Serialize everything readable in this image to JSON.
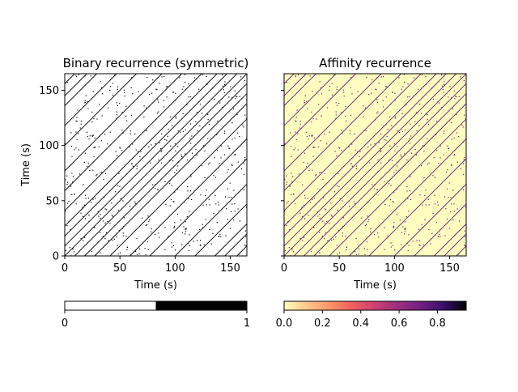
{
  "chart_data": [
    {
      "type": "heatmap",
      "title": "Binary recurrence (symmetric)",
      "xlabel": "Time (s)",
      "ylabel": "Time (s)",
      "xlim": [
        0,
        165
      ],
      "ylim": [
        0,
        165
      ],
      "xticks": [
        0,
        50,
        100,
        150
      ],
      "yticks": [
        0,
        50,
        100,
        150
      ],
      "background_color": "#ffffff",
      "mark_color": "#000000",
      "diagonal_lags": [
        0,
        9,
        18,
        27,
        41,
        59,
        77,
        100,
        118,
        136,
        145,
        156
      ],
      "colorbar": {
        "type": "binary",
        "ticks": [
          "0",
          "1"
        ],
        "colors": [
          "#ffffff",
          "#000000"
        ]
      }
    },
    {
      "type": "heatmap",
      "title": "Affinity recurrence",
      "xlabel": "Time (s)",
      "ylabel": "",
      "xlim": [
        0,
        165
      ],
      "ylim": [
        0,
        165
      ],
      "xticks": [
        0,
        50,
        100,
        150
      ],
      "yticks": [
        0,
        50,
        100,
        150
      ],
      "background_color": "#fcfdbf",
      "mark_color": "#6a1c81",
      "diagonal_lags": [
        0,
        9,
        18,
        27,
        41,
        59,
        77,
        100,
        118,
        136,
        145,
        156
      ],
      "colorbar": {
        "type": "continuous",
        "colormap": "magma_r",
        "range": [
          0,
          0.95
        ],
        "ticks": [
          "0.0",
          "0.2",
          "0.4",
          "0.6",
          "0.8"
        ]
      }
    }
  ]
}
